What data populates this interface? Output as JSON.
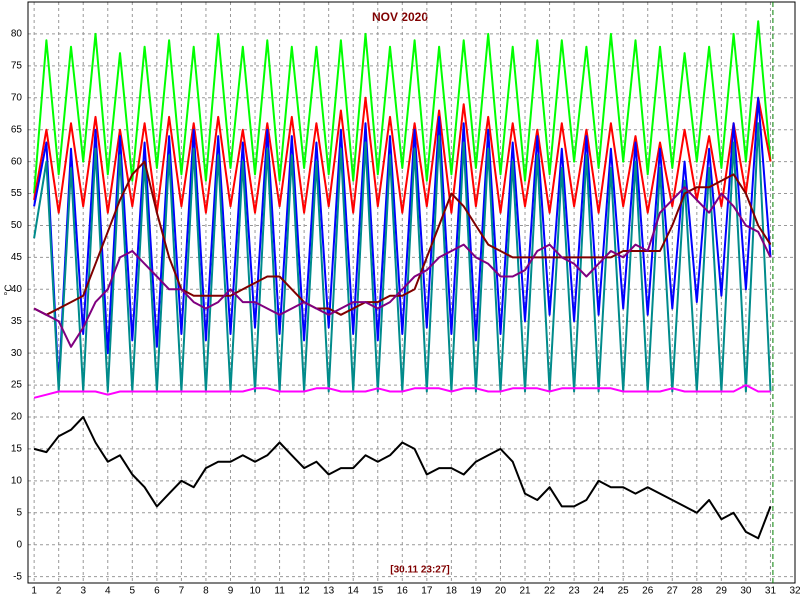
{
  "chart_data": {
    "type": "line",
    "title": "NOV 2020",
    "ylabel": "°C",
    "annotation": "[30.11 23:27]",
    "xlim": [
      0.75,
      32
    ],
    "ylim": [
      -6,
      85
    ],
    "xticks": [
      1,
      2,
      3,
      4,
      5,
      6,
      7,
      8,
      9,
      10,
      11,
      12,
      13,
      14,
      15,
      16,
      17,
      18,
      19,
      20,
      21,
      22,
      23,
      24,
      25,
      26,
      27,
      28,
      29,
      30,
      31,
      32
    ],
    "yticks": [
      -5,
      0,
      5,
      10,
      15,
      20,
      25,
      30,
      35,
      40,
      45,
      50,
      55,
      60,
      65,
      70,
      75,
      80
    ],
    "grid": true,
    "marker_x": 31.1,
    "x": [
      1,
      1.5,
      2,
      2.5,
      3,
      3.5,
      4,
      4.5,
      5,
      5.5,
      6,
      6.5,
      7,
      7.5,
      8,
      8.5,
      9,
      9.5,
      10,
      10.5,
      11,
      11.5,
      12,
      12.5,
      13,
      13.5,
      14,
      14.5,
      15,
      15.5,
      16,
      16.5,
      17,
      17.5,
      18,
      18.5,
      19,
      19.5,
      20,
      20.5,
      21,
      21.5,
      22,
      22.5,
      23,
      23.5,
      24,
      24.5,
      25,
      25.5,
      26,
      26.5,
      27,
      27.5,
      28,
      28.5,
      29,
      29.5,
      30,
      30.5,
      31
    ],
    "series": [
      {
        "color": "#00ff00",
        "values": [
          55,
          79,
          58,
          78,
          60,
          80,
          58,
          77,
          57,
          78,
          59,
          79,
          58,
          78,
          57,
          80,
          59,
          78,
          58,
          79,
          57,
          78,
          59,
          78,
          58,
          79,
          57,
          80,
          58,
          78,
          59,
          79,
          57,
          78,
          58,
          79,
          59,
          80,
          58,
          78,
          57,
          79,
          58,
          79,
          60,
          78,
          59,
          80,
          60,
          79,
          58,
          78,
          59,
          77,
          60,
          78,
          59,
          80,
          60,
          82,
          60
        ]
      },
      {
        "color": "#ff0000",
        "values": [
          54,
          65,
          52,
          66,
          53,
          67,
          52,
          65,
          53,
          66,
          52,
          67,
          53,
          66,
          52,
          67,
          53,
          65,
          52,
          66,
          53,
          67,
          52,
          66,
          53,
          68,
          52,
          70,
          53,
          67,
          52,
          66,
          53,
          68,
          52,
          69,
          53,
          67,
          52,
          66,
          53,
          65,
          52,
          66,
          53,
          65,
          52,
          66,
          53,
          64,
          52,
          63,
          53,
          65,
          54,
          64,
          53,
          66,
          55,
          70,
          60
        ]
      },
      {
        "color": "#0000ff",
        "values": [
          53,
          63,
          25,
          62,
          33,
          65,
          30,
          64,
          32,
          63,
          31,
          64,
          33,
          65,
          32,
          64,
          33,
          63,
          34,
          65,
          33,
          64,
          32,
          63,
          34,
          65,
          33,
          66,
          32,
          64,
          33,
          65,
          34,
          67,
          33,
          66,
          32,
          65,
          33,
          63,
          35,
          64,
          36,
          62,
          35,
          64,
          36,
          62,
          37,
          63,
          36,
          62,
          37,
          60,
          38,
          62,
          39,
          66,
          40,
          70,
          45
        ]
      },
      {
        "color": "#008b8b",
        "values": [
          48,
          60,
          24,
          59,
          24,
          62,
          24,
          61,
          24,
          60,
          24,
          61,
          24,
          62,
          24,
          61,
          24,
          60,
          24,
          62,
          24,
          61,
          24,
          60,
          24,
          62,
          24,
          63,
          24,
          61,
          24,
          62,
          24,
          64,
          24,
          63,
          24,
          62,
          24,
          60,
          24,
          61,
          24,
          59,
          24,
          61,
          24,
          59,
          24,
          60,
          24,
          59,
          24,
          57,
          24,
          59,
          24,
          63,
          24,
          66,
          24
        ]
      },
      {
        "color": "#ff00ff",
        "values": [
          23,
          23.5,
          24,
          24,
          24,
          24,
          23.5,
          24,
          24,
          24,
          24,
          24,
          24,
          24,
          24,
          24,
          24,
          24,
          24.5,
          24.5,
          24,
          24,
          24,
          24.5,
          24.5,
          24,
          24,
          24,
          24.5,
          24,
          24,
          24.5,
          24.5,
          24.5,
          24,
          24.5,
          24.5,
          24,
          24,
          24.5,
          24.5,
          24.5,
          24,
          24.5,
          24.5,
          24.5,
          24.5,
          24.5,
          24,
          24,
          24,
          24,
          24.5,
          24,
          24,
          24,
          24,
          24,
          25,
          24,
          24
        ]
      },
      {
        "color": "#800000",
        "values": [
          37,
          36,
          37,
          38,
          39,
          44,
          49,
          54,
          58,
          60,
          52,
          45,
          40,
          39,
          39,
          39,
          39,
          40,
          41,
          42,
          42,
          40,
          38,
          37,
          37,
          36,
          37,
          38,
          38,
          39,
          39,
          40,
          45,
          50,
          55,
          53,
          50,
          47,
          46,
          45,
          45,
          45,
          45,
          45,
          45,
          45,
          45,
          45,
          46,
          46,
          46,
          46,
          50,
          55,
          56,
          56,
          57,
          58,
          55,
          50,
          47
        ]
      },
      {
        "color": "#800080",
        "values": [
          37,
          36,
          35,
          31,
          34,
          38,
          40,
          45,
          46,
          44,
          42,
          40,
          40,
          38,
          37,
          38,
          40,
          38,
          38,
          37,
          36,
          37,
          38,
          37,
          36,
          37,
          38,
          38,
          37,
          38,
          40,
          42,
          43,
          45,
          46,
          47,
          45,
          44,
          42,
          42,
          43,
          46,
          47,
          45,
          44,
          42,
          44,
          46,
          45,
          47,
          46,
          52,
          54,
          56,
          54,
          52,
          55,
          53,
          50,
          49,
          45
        ]
      },
      {
        "color": "#000000",
        "values": [
          15,
          14.5,
          17,
          18,
          20,
          16,
          13,
          14,
          11,
          9,
          6,
          8,
          10,
          9,
          12,
          13,
          13,
          14,
          13,
          14,
          16,
          14,
          12,
          13,
          11,
          12,
          12,
          14,
          13,
          14,
          16,
          15,
          11,
          12,
          12,
          11,
          13,
          14,
          15,
          13,
          8,
          7,
          9,
          6,
          6,
          7,
          10,
          9,
          9,
          8,
          9,
          8,
          7,
          6,
          5,
          7,
          4,
          5,
          2,
          1,
          6
        ]
      }
    ]
  }
}
